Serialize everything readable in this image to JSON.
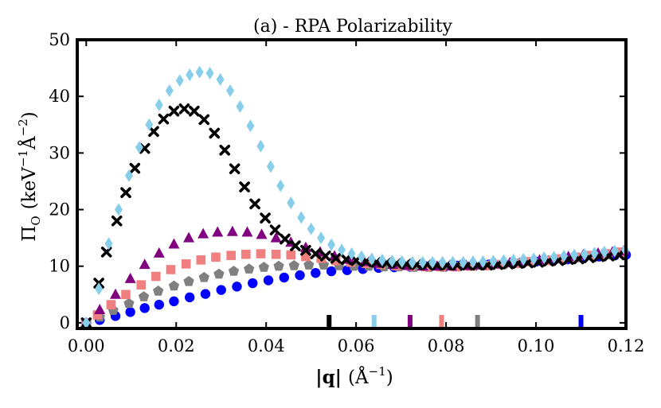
{
  "chart_data": {
    "type": "scatter",
    "title": "(a) - RPA Polarizability",
    "xlabel": {
      "main": "|q|",
      "unit_open": "(",
      "unit": "Å",
      "sup": "−1",
      "unit_close": ")"
    },
    "ylabel": {
      "main": "Π",
      "sub": "O",
      "unit_open": "(",
      "unit1": "keV",
      "sup1": "−1",
      "unit2": "Å",
      "sup2": "−2",
      "unit_close": ")"
    },
    "xlim": [
      -0.002,
      0.12
    ],
    "ylim": [
      -1,
      50
    ],
    "xticks": [
      0.0,
      0.02,
      0.04,
      0.06,
      0.08,
      0.1,
      0.12
    ],
    "xtick_labels": [
      "0.00",
      "0.02",
      "0.04",
      "0.06",
      "0.08",
      "0.10",
      "0.12"
    ],
    "yticks": [
      0,
      10,
      20,
      30,
      40,
      50
    ],
    "ytick_labels": [
      "0",
      "10",
      "20",
      "30",
      "40",
      "50"
    ],
    "series": [
      {
        "name": "blue circles",
        "marker": "circle",
        "color": "#0000ff",
        "x": [
          0.0,
          0.003,
          0.0065,
          0.0098,
          0.013,
          0.0162,
          0.0195,
          0.023,
          0.0265,
          0.03,
          0.0335,
          0.037,
          0.0405,
          0.044,
          0.0475,
          0.051,
          0.0545,
          0.058,
          0.0615,
          0.065,
          0.0685,
          0.072,
          0.0755,
          0.079,
          0.0825,
          0.086,
          0.0895,
          0.093,
          0.0965,
          0.1,
          0.1035,
          0.107,
          0.1105,
          0.114,
          0.1175,
          0.12
        ],
        "y": [
          0.0,
          0.5,
          1.2,
          1.9,
          2.6,
          3.2,
          3.8,
          4.5,
          5.1,
          5.8,
          6.4,
          7.0,
          7.5,
          8.0,
          8.4,
          8.8,
          9.1,
          9.3,
          9.5,
          9.7,
          9.8,
          9.9,
          10.0,
          10.0,
          10.1,
          10.2,
          10.3,
          10.4,
          10.6,
          10.8,
          11.0,
          11.2,
          11.5,
          11.7,
          11.9,
          12.0
        ]
      },
      {
        "name": "gray pentagons",
        "marker": "pentagon",
        "color": "#808080",
        "x": [
          0.0,
          0.003,
          0.006,
          0.0095,
          0.0128,
          0.016,
          0.0195,
          0.0228,
          0.0262,
          0.0295,
          0.0328,
          0.0362,
          0.0395,
          0.0428,
          0.0462,
          0.0495,
          0.0528,
          0.0562,
          0.0595,
          0.0628,
          0.0662,
          0.0695,
          0.0728,
          0.0762,
          0.0795,
          0.0828,
          0.0862,
          0.0895,
          0.0928,
          0.0962,
          0.0995,
          0.1028,
          0.1062,
          0.1095,
          0.1128,
          0.1162,
          0.1195
        ],
        "y": [
          0.0,
          1.0,
          2.2,
          3.4,
          4.6,
          5.6,
          6.5,
          7.3,
          8.0,
          8.6,
          9.1,
          9.5,
          9.8,
          10.0,
          10.1,
          10.2,
          10.2,
          10.1,
          10.0,
          10.0,
          9.9,
          9.9,
          9.8,
          9.8,
          9.8,
          9.9,
          10.0,
          10.1,
          10.3,
          10.5,
          10.8,
          11.0,
          11.2,
          11.5,
          11.8,
          12.0,
          12.2
        ]
      },
      {
        "name": "salmon squares",
        "marker": "square",
        "color": "#f08080",
        "x": [
          0.0,
          0.0025,
          0.0055,
          0.0088,
          0.0122,
          0.0155,
          0.0188,
          0.0222,
          0.0255,
          0.0288,
          0.0322,
          0.0355,
          0.0388,
          0.0422,
          0.0455,
          0.0488,
          0.0522,
          0.0555,
          0.0588,
          0.0622,
          0.0655,
          0.0688,
          0.0722,
          0.0755,
          0.0788,
          0.0822,
          0.0855,
          0.0888,
          0.0922,
          0.0955,
          0.0988,
          0.1022,
          0.1055,
          0.1088,
          0.1122,
          0.1155,
          0.1188
        ],
        "y": [
          0.0,
          1.4,
          3.2,
          5.0,
          6.7,
          8.2,
          9.4,
          10.4,
          11.1,
          11.6,
          11.9,
          12.1,
          12.2,
          12.1,
          12.0,
          11.7,
          11.4,
          11.0,
          10.7,
          10.5,
          10.3,
          10.1,
          10.0,
          9.9,
          9.9,
          9.9,
          10.0,
          10.1,
          10.3,
          10.5,
          10.8,
          11.0,
          11.3,
          11.6,
          11.9,
          12.2,
          12.5
        ]
      },
      {
        "name": "purple triangles",
        "marker": "triangle",
        "color": "#800080",
        "x": [
          0.0,
          0.003,
          0.0065,
          0.0098,
          0.013,
          0.0162,
          0.0195,
          0.0228,
          0.026,
          0.0292,
          0.0325,
          0.0358,
          0.039,
          0.0422,
          0.0455,
          0.0488,
          0.052,
          0.0552,
          0.0585,
          0.0618,
          0.065,
          0.0682,
          0.0715,
          0.0748,
          0.078,
          0.0812,
          0.0845,
          0.0878,
          0.091,
          0.0942,
          0.0975,
          0.1008,
          0.104,
          0.1072,
          0.1105,
          0.1138,
          0.117,
          0.1195
        ],
        "y": [
          0.0,
          2.3,
          5.0,
          7.8,
          10.3,
          12.3,
          13.9,
          15.0,
          15.7,
          16.0,
          16.1,
          16.0,
          15.6,
          15.0,
          14.2,
          13.3,
          12.5,
          11.8,
          11.2,
          10.8,
          10.5,
          10.3,
          10.1,
          10.0,
          10.0,
          10.0,
          10.1,
          10.2,
          10.4,
          10.6,
          10.9,
          11.1,
          11.4,
          11.7,
          12.0,
          12.3,
          12.5,
          12.7
        ]
      },
      {
        "name": "black crosses",
        "marker": "cross",
        "color": "#000000",
        "x": [
          0.0,
          0.0028,
          0.0045,
          0.0068,
          0.0088,
          0.0108,
          0.013,
          0.015,
          0.0172,
          0.0195,
          0.0218,
          0.024,
          0.0262,
          0.0285,
          0.0308,
          0.033,
          0.0352,
          0.0375,
          0.0398,
          0.042,
          0.0442,
          0.0465,
          0.0488,
          0.051,
          0.0532,
          0.0555,
          0.0578,
          0.06,
          0.0622,
          0.0645,
          0.0668,
          0.069,
          0.0712,
          0.0735,
          0.0758,
          0.078,
          0.0802,
          0.0825,
          0.0848,
          0.087,
          0.0892,
          0.0915,
          0.0938,
          0.096,
          0.0982,
          0.1005,
          0.1028,
          0.105,
          0.1072,
          0.1095,
          0.1118,
          0.114,
          0.1162,
          0.1185
        ],
        "y": [
          0.0,
          7.0,
          12.5,
          18.0,
          23.0,
          27.3,
          30.8,
          33.8,
          36.0,
          37.4,
          37.8,
          37.4,
          35.9,
          33.5,
          30.5,
          27.2,
          24.0,
          21.0,
          18.5,
          16.4,
          14.8,
          13.6,
          12.8,
          12.2,
          11.8,
          11.4,
          11.2,
          11.0,
          10.8,
          10.7,
          10.6,
          10.5,
          10.4,
          10.3,
          10.3,
          10.2,
          10.2,
          10.2,
          10.2,
          10.2,
          10.2,
          10.3,
          10.4,
          10.5,
          10.6,
          10.7,
          10.9,
          11.0,
          11.2,
          11.3,
          11.5,
          11.7,
          11.8,
          12.0
        ]
      },
      {
        "name": "light blue diamonds",
        "marker": "diamond",
        "color": "#87ceeb",
        "x": [
          0.0,
          0.0028,
          0.005,
          0.0072,
          0.0095,
          0.0118,
          0.014,
          0.0162,
          0.0185,
          0.0208,
          0.023,
          0.0252,
          0.0275,
          0.0298,
          0.032,
          0.0342,
          0.0365,
          0.0388,
          0.041,
          0.0432,
          0.0455,
          0.0478,
          0.05,
          0.0522,
          0.0545,
          0.0568,
          0.059,
          0.0612,
          0.0635,
          0.0658,
          0.068,
          0.0702,
          0.0725,
          0.0748,
          0.077,
          0.0792,
          0.0815,
          0.0838,
          0.086,
          0.0882,
          0.0905,
          0.0928,
          0.095,
          0.0972,
          0.0995,
          0.1018,
          0.104,
          0.1062,
          0.1085,
          0.1108,
          0.113,
          0.1152,
          0.1175,
          0.1198
        ],
        "y": [
          0.0,
          6.0,
          14.0,
          20.0,
          26.0,
          31.0,
          35.0,
          38.5,
          41.0,
          42.8,
          43.8,
          44.3,
          44.1,
          43.0,
          41.0,
          38.2,
          34.8,
          31.2,
          27.6,
          24.2,
          21.2,
          18.6,
          16.6,
          15.0,
          13.8,
          12.9,
          12.2,
          11.7,
          11.3,
          11.1,
          10.9,
          10.8,
          10.7,
          10.7,
          10.7,
          10.7,
          10.7,
          10.7,
          10.8,
          10.8,
          10.9,
          11.0,
          11.1,
          11.2,
          11.3,
          11.5,
          11.6,
          11.8,
          12.0,
          12.1,
          12.3,
          12.5,
          12.7,
          12.9
        ]
      }
    ],
    "annotations": [
      {
        "type": "marker-bar",
        "x": 0.054,
        "color": "#000000"
      },
      {
        "type": "marker-bar",
        "x": 0.064,
        "color": "#87ceeb"
      },
      {
        "type": "marker-bar",
        "x": 0.072,
        "color": "#800080"
      },
      {
        "type": "marker-bar",
        "x": 0.079,
        "color": "#f08080"
      },
      {
        "type": "marker-bar",
        "x": 0.087,
        "color": "#808080"
      },
      {
        "type": "marker-bar",
        "x": 0.11,
        "color": "#0000ff"
      }
    ]
  }
}
